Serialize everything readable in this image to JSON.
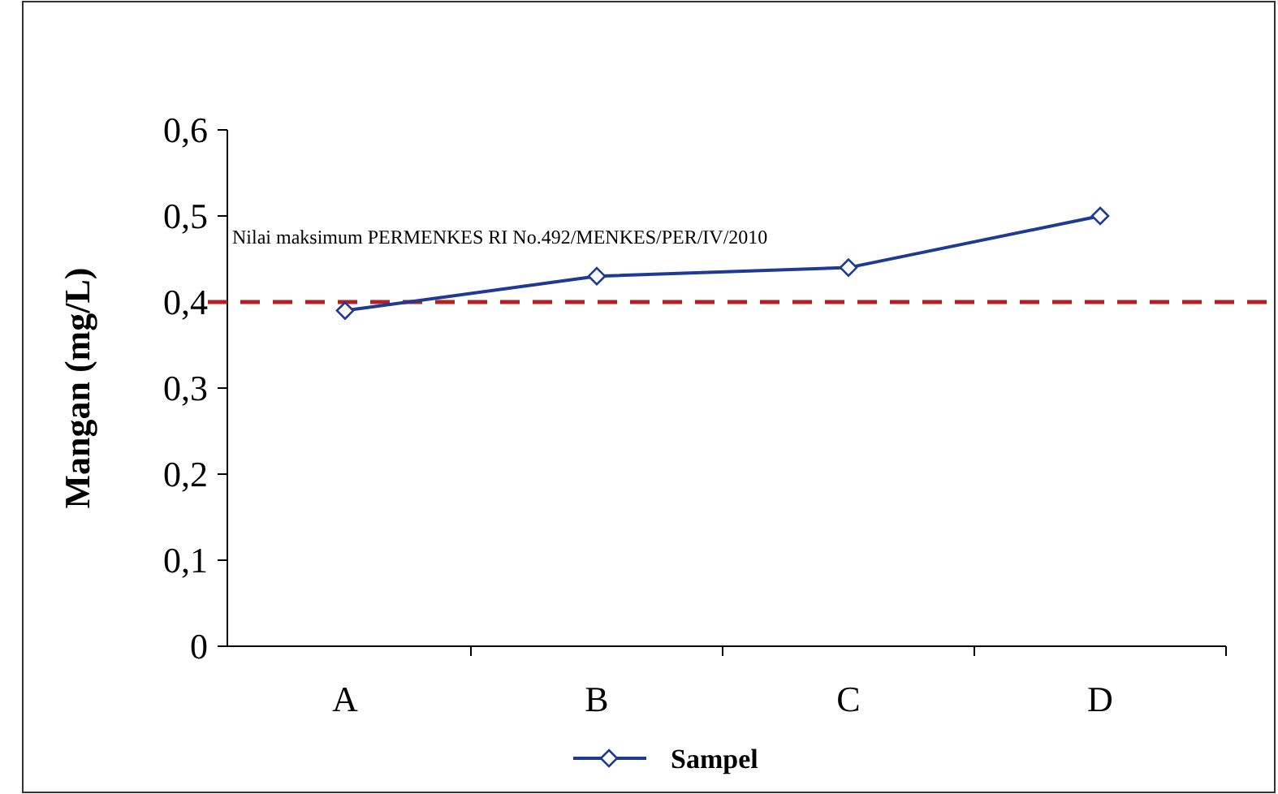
{
  "chart_data": {
    "type": "line",
    "ylabel": "Mangan (mg/L)",
    "categories": [
      "A",
      "B",
      "C",
      "D"
    ],
    "series": [
      {
        "name": "Sampel",
        "color": "#1f3a93",
        "values": [
          0.39,
          0.43,
          0.44,
          0.5
        ]
      }
    ],
    "ylim": [
      0,
      0.6
    ],
    "yticks": [
      {
        "value": 0,
        "label": "0"
      },
      {
        "value": 0.1,
        "label": "0,1"
      },
      {
        "value": 0.2,
        "label": "0,2"
      },
      {
        "value": 0.3,
        "label": "0,3"
      },
      {
        "value": 0.4,
        "label": "0,4"
      },
      {
        "value": 0.5,
        "label": "0,5"
      },
      {
        "value": 0.6,
        "label": "0,6"
      }
    ],
    "ref_lines": [
      {
        "axis": "y",
        "value": 0.4,
        "label": "Nilai maksimum PERMENKES RI No.492/MENKES/PER/IV/2010",
        "color": "#b22222",
        "line_style": "dashed"
      }
    ],
    "marker": "diamond",
    "legend": "bottom",
    "grid": false
  }
}
